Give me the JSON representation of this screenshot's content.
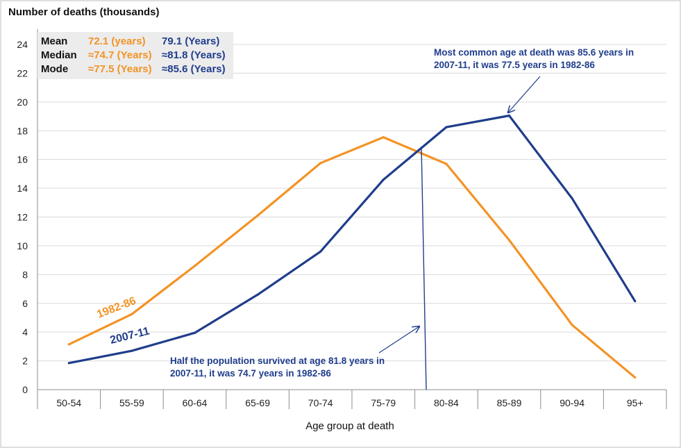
{
  "chart_data": {
    "type": "line",
    "title": "",
    "ylabel": "Number of deaths (thousands)",
    "xlabel": "Age group at death",
    "ylim": [
      0,
      24
    ],
    "yticks": [
      0,
      2,
      4,
      6,
      8,
      10,
      12,
      14,
      16,
      18,
      20,
      22,
      24
    ],
    "categories": [
      "50-54",
      "55-59",
      "60-64",
      "65-69",
      "70-74",
      "75-79",
      "80-84",
      "85-89",
      "90-94",
      "95+"
    ],
    "grid": "horizontal",
    "series": [
      {
        "name": "1982-86",
        "color": "#f39325",
        "values": [
          3.15,
          5.25,
          8.6,
          12.1,
          15.75,
          17.55,
          15.7,
          10.4,
          4.5,
          0.85
        ]
      },
      {
        "name": "2007-11",
        "color": "#1f3d8c",
        "values": [
          1.85,
          2.7,
          3.95,
          6.6,
          9.6,
          14.6,
          18.25,
          19.05,
          13.3,
          6.15
        ]
      }
    ],
    "median_marker": {
      "age": 81.8
    },
    "stats_table": {
      "rows": [
        {
          "label": "Mean",
          "v1982": "72.1 (years)",
          "v2007": "79.1 (Years)"
        },
        {
          "label": "Median",
          "v1982": "≈74.7 (Years)",
          "v2007": "≈81.8 (Years)"
        },
        {
          "label": "Mode",
          "v1982": "≈77.5 (Years)",
          "v2007": "≈85.6 (Years)"
        }
      ]
    },
    "annotations": [
      {
        "id": "mode",
        "lines": [
          "Most common age at death was 85.6 years in",
          "2007-11,  it was 77.5 years in 1982-86"
        ]
      },
      {
        "id": "median",
        "lines": [
          "Half the population survived at age 81.8 years in",
          "2007-11, it was 74.7 years in 1982-86"
        ]
      }
    ]
  }
}
